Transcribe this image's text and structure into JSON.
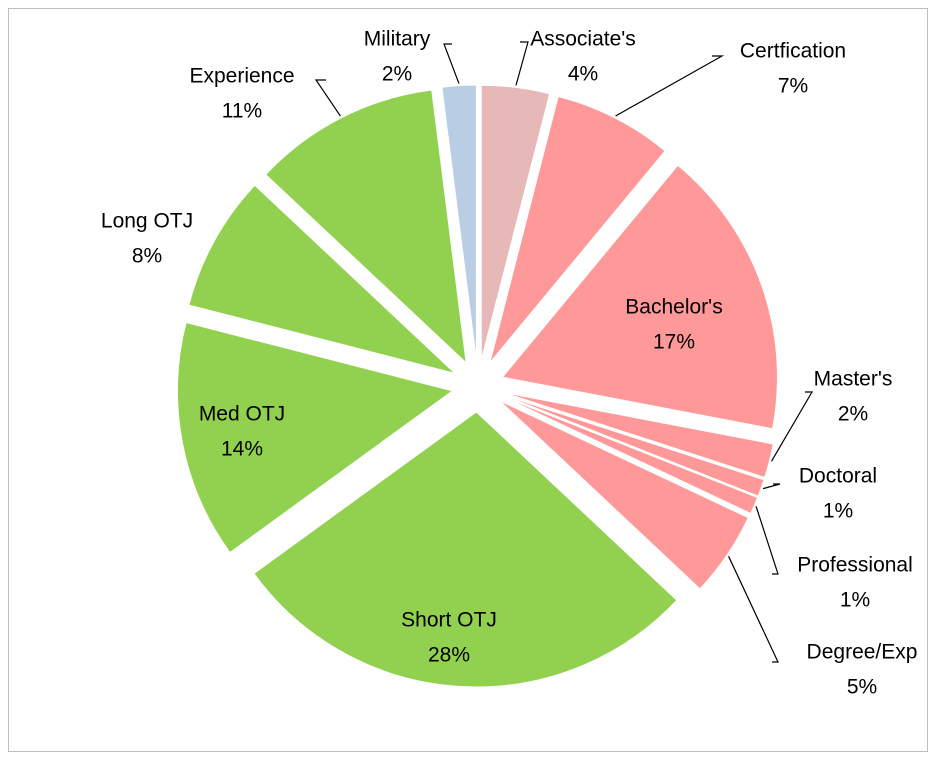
{
  "chart_data": {
    "type": "pie",
    "categories": [
      "Associate's",
      "Certfication",
      "Bachelor's",
      "Master's",
      "Doctoral",
      "Professional",
      "Degree/Exp",
      "Short OTJ",
      "Med OTJ",
      "Long OTJ",
      "Experience",
      "Military"
    ],
    "values": [
      4,
      7,
      17,
      2,
      1,
      1,
      5,
      28,
      14,
      8,
      11,
      2
    ],
    "value_labels": [
      "4%",
      "7%",
      "17%",
      "2%",
      "1%",
      "1%",
      "5%",
      "28%",
      "14%",
      "8%",
      "11%",
      "2%"
    ],
    "colors": [
      "#e6b9b8",
      "#ff9999",
      "#ff9999",
      "#ff9999",
      "#ff9999",
      "#ff9999",
      "#ff9999",
      "#92d050",
      "#92d050",
      "#92d050",
      "#92d050",
      "#b9cde5"
    ]
  }
}
